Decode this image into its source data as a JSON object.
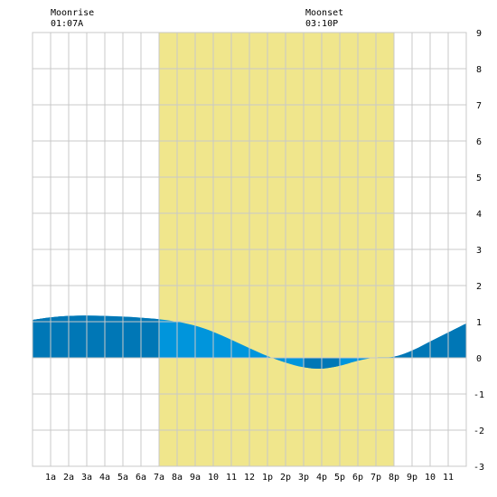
{
  "moon": {
    "rise_label": "Moonrise",
    "rise_time": "01:07A",
    "set_label": "Moonset",
    "set_time": "03:10P"
  },
  "colors": {
    "daylight": "#f0e68c",
    "tide_fill": "#0095dc",
    "tide_night": "#0077b6",
    "grid": "#c8c8c8",
    "border": "#c8c8c8"
  },
  "chart_data": {
    "type": "area",
    "title": "",
    "xlabel": "",
    "ylabel": "",
    "x_ticks": [
      "1a",
      "2a",
      "3a",
      "4a",
      "5a",
      "6a",
      "7a",
      "8a",
      "9a",
      "10",
      "11",
      "12",
      "1p",
      "2p",
      "3p",
      "4p",
      "5p",
      "6p",
      "7p",
      "8p",
      "9p",
      "10",
      "11"
    ],
    "y_ticks": [
      9,
      8,
      7,
      6,
      5,
      4,
      3,
      2,
      1,
      0,
      -1,
      -2,
      -3
    ],
    "xlim": [
      0,
      24
    ],
    "ylim": [
      -3,
      9
    ],
    "grid": true,
    "daylight": {
      "start_hour": 7.0,
      "end_hour": 20.0
    },
    "moonrise_hour": 1.12,
    "moonset_hour": 15.17,
    "series": [
      {
        "x": [
          0,
          1,
          2,
          3,
          4,
          5,
          6,
          7,
          8,
          9,
          10,
          11,
          12,
          13,
          14,
          15,
          16,
          17,
          18,
          19,
          20,
          21,
          22,
          23,
          24
        ],
        "y": [
          1.05,
          1.12,
          1.16,
          1.17,
          1.16,
          1.14,
          1.11,
          1.07,
          1.0,
          0.89,
          0.72,
          0.5,
          0.27,
          0.05,
          -0.13,
          -0.26,
          -0.3,
          -0.22,
          -0.08,
          0.01,
          0.03,
          0.2,
          0.45,
          0.7,
          0.95
        ]
      }
    ]
  }
}
